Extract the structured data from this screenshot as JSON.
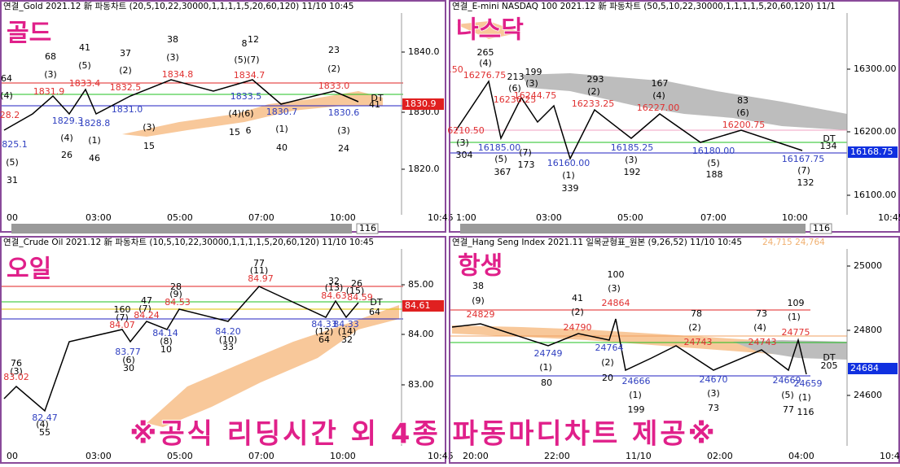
{
  "banner": "※공식 리딩시간 외 4종 파동마디차트 제공※",
  "panels": [
    {
      "title": "연결_Gold 2021.12 新 파동차트 (20,5,10,22,30000,1,1,1,1,5,20,60,120) 11/10 10:45",
      "label": "골드",
      "price_ticks": [
        "1840.0",
        "1830.0",
        "1820.0"
      ],
      "current_price": "1830.9",
      "time_ticks": [
        "00",
        "03:00",
        "05:00",
        "07:00",
        "10:00",
        "10:45"
      ],
      "scroll": "116",
      "annotations": [
        "64",
        "(4)",
        "28.2",
        "825.1",
        "(5)",
        "31",
        "68",
        "(3)",
        "1831.9",
        "1829.3",
        "(4)",
        "26",
        "41",
        "(5)",
        "1833.4",
        "1828.8",
        "(1)",
        "46",
        "37",
        "(2)",
        "1832.5",
        "1831.0",
        "(3)",
        "15",
        "38",
        "(3)",
        "1834.8",
        "8",
        "12",
        "(5)(7)",
        "1834.7",
        "1833.5",
        "(4)(6)",
        "15",
        "6",
        "1830.7",
        "(1)",
        "40",
        "23",
        "(2)",
        "1833.0",
        "1830.6",
        "(3)",
        "24",
        "DT",
        "41"
      ]
    },
    {
      "title": "연결_E-mini NASDAQ 100 2021.12 新 파동차트 (50,5,10,22,30000,1,1,1,1,5,20,60,120) 11/1",
      "label": "나스닥",
      "price_ticks": [
        "16300.00",
        "16200.00",
        "16100.00"
      ],
      "current_price": "16168.75",
      "time_ticks": [
        "1:00",
        "03:00",
        "05:00",
        "07:00",
        "10:00",
        "10:45"
      ],
      "scroll": "116",
      "annotations": [
        "265",
        "(4)",
        ".50",
        "16276.75",
        "213",
        "(6)",
        "199",
        "(3)",
        "16236.25",
        "16244.75",
        "6210.50",
        "(3)",
        "304",
        "16185.00",
        "(5)",
        "367",
        "(7)",
        "173",
        "16160.00",
        "(1)",
        "339",
        "293",
        "(2)",
        "16233.25",
        "16185.25",
        "(3)",
        "192",
        "167",
        "(4)",
        "16227.00",
        "16180.00",
        "(5)",
        "188",
        "83",
        "(6)",
        "16200.75",
        "16167.75",
        "(7)",
        "132",
        "DT",
        "134"
      ]
    },
    {
      "title": "연결_Crude Oil 2021.12 新 파동차트 (10,5,10,22,30000,1,1,1,1,5,20,60,120) 11/10 10:45",
      "label": "오일",
      "price_ticks": [
        "85.00",
        "84.00",
        "83.00"
      ],
      "current_price": "84.61",
      "time_ticks": [
        "00",
        "03:00",
        "05:00",
        "07:00",
        "10:00",
        "10:45"
      ],
      "annotations": [
        "76",
        "(3)",
        "83.02",
        "82.47",
        "(4)",
        "55",
        "160",
        "(7)",
        "84.07",
        "83.77",
        "(6)",
        "30",
        "47",
        "(7)",
        "84.24",
        "84.14",
        "(8)",
        "10",
        "28",
        "(9)",
        "84.53",
        "84.20",
        "(10)",
        "33",
        "77",
        "(11)",
        "84.97",
        "32",
        "(13)",
        "84.63",
        "26",
        "(15)",
        "84.59",
        "84.33",
        "84.33",
        "(12)",
        "(14)",
        "64",
        "32",
        "DT",
        "64"
      ]
    },
    {
      "title": "연결_Hang Seng Index 2021.11 일목균형표_원본 (9,26,52) 11/10 10:45",
      "subtitle": "24,715 24,764",
      "label": "항생",
      "price_ticks": [
        "25000",
        "24800",
        "24600"
      ],
      "current_price": "24684",
      "time_ticks": [
        "20:00",
        "22:00",
        "11/10",
        "02:00",
        "04:00",
        "10:45"
      ],
      "annotations": [
        "38",
        "(9)",
        "24829",
        "41",
        "(2)",
        "24790",
        "24749",
        "(1)",
        "80",
        "100",
        "(3)",
        "24864",
        "24764",
        "(2)",
        "20",
        "24666",
        "(1)",
        "199",
        "78",
        "(2)",
        "24743",
        "24670",
        "(3)",
        "73",
        "73",
        "(4)",
        "24743",
        "109",
        "(1)",
        "24775",
        "24669",
        "24659",
        "(5)",
        "(1)",
        "77",
        "116",
        "DT",
        "205"
      ]
    }
  ]
}
